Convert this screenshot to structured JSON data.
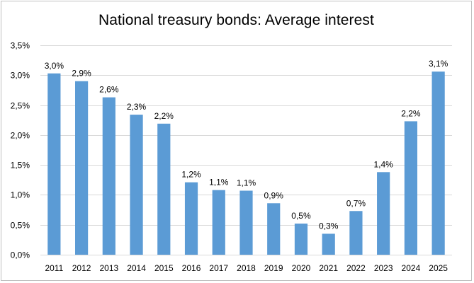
{
  "chart_data": {
    "type": "bar",
    "title": "National treasury bonds: Average interest",
    "xlabel": "",
    "ylabel": "",
    "categories": [
      "2011",
      "2012",
      "2013",
      "2014",
      "2015",
      "2016",
      "2017",
      "2018",
      "2019",
      "2020",
      "2021",
      "2022",
      "2023",
      "2024",
      "2025"
    ],
    "values": [
      3.03,
      2.9,
      2.63,
      2.34,
      2.19,
      1.21,
      1.08,
      1.07,
      0.86,
      0.52,
      0.35,
      0.73,
      1.38,
      2.23,
      3.06
    ],
    "data_labels": [
      "3,0%",
      "2,9%",
      "2,6%",
      "2,3%",
      "2,2%",
      "1,2%",
      "1,1%",
      "1,1%",
      "0,9%",
      "0,5%",
      "0,3%",
      "0,7%",
      "1,4%",
      "2,2%",
      "3,1%"
    ],
    "ylim": [
      0,
      3.5
    ],
    "y_ticks": [
      0,
      0.5,
      1.0,
      1.5,
      2.0,
      2.5,
      3.0,
      3.5
    ],
    "y_tick_labels": [
      "0,0%",
      "0,5%",
      "1,0%",
      "1,5%",
      "2,0%",
      "2,5%",
      "3,0%",
      "3,5%"
    ],
    "grid": true,
    "legend": "none",
    "bar_color": "#5b9bd5",
    "grid_color": "#d9d9d9"
  }
}
